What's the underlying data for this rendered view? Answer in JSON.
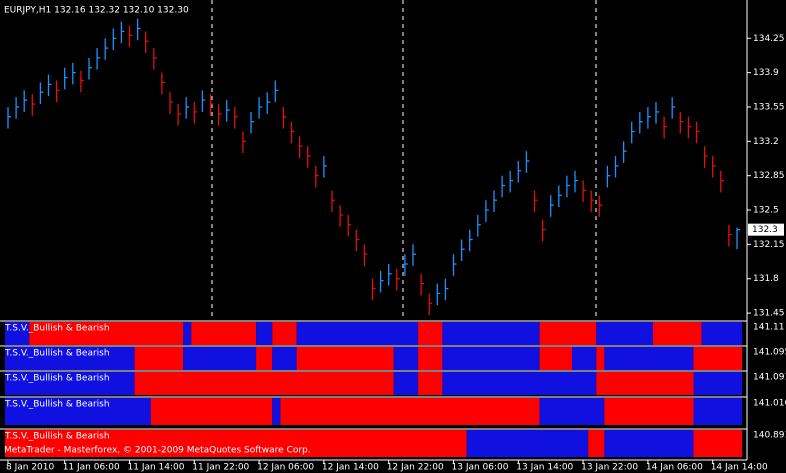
{
  "chart_data": [
    {
      "type": "ohlc",
      "title": "EURJPY,H1  132.16 132.32 132.10 132.30",
      "categories": [
        "8 Jan 2010",
        null,
        null,
        null,
        null,
        null,
        null,
        "11 Jan 06:00",
        null,
        null,
        null,
        null,
        null,
        null,
        null,
        "11 Jan 14:00",
        null,
        null,
        null,
        null,
        null,
        null,
        null,
        "11 Jan 22:00",
        null,
        null,
        null,
        null,
        null,
        null,
        null,
        "12 Jan 06:00",
        null,
        null,
        null,
        null,
        null,
        null,
        null,
        "12 Jan 14:00",
        null,
        null,
        null,
        null,
        null,
        null,
        null,
        "12 Jan 22:00",
        null,
        null,
        null,
        null,
        null,
        null,
        null,
        "13 Jan 06:00",
        null,
        null,
        null,
        null,
        null,
        null,
        null,
        "13 Jan 14:00",
        null,
        null,
        null,
        null,
        null,
        null,
        null,
        "13 Jan 22:00",
        null,
        null,
        null,
        null,
        null,
        null,
        null,
        "14 Jan 06:00",
        null,
        null,
        null,
        null,
        null,
        null,
        null,
        "14 Jan 14:00",
        null,
        null,
        null
      ],
      "high": [
        133.55,
        133.65,
        133.72,
        133.68,
        133.8,
        133.88,
        133.82,
        133.95,
        134.0,
        133.92,
        134.05,
        134.15,
        134.25,
        134.35,
        134.42,
        134.38,
        134.45,
        134.32,
        134.15,
        133.9,
        133.7,
        133.58,
        133.65,
        133.6,
        133.72,
        133.68,
        133.58,
        133.62,
        133.55,
        133.3,
        133.5,
        133.65,
        133.7,
        133.82,
        133.55,
        133.4,
        133.25,
        133.15,
        132.95,
        133.05,
        132.7,
        132.55,
        132.45,
        132.3,
        132.15,
        131.8,
        131.88,
        131.95,
        131.9,
        132.05,
        132.15,
        131.85,
        131.65,
        131.75,
        131.8,
        132.05,
        132.2,
        132.3,
        132.45,
        132.6,
        132.7,
        132.85,
        132.9,
        133.0,
        133.1,
        132.7,
        132.4,
        132.65,
        132.75,
        132.85,
        132.9,
        132.8,
        132.7,
        132.65,
        132.95,
        133.05,
        133.2,
        133.4,
        133.5,
        133.55,
        133.6,
        133.45,
        133.65,
        133.5,
        133.45,
        133.4,
        133.15,
        133.05,
        132.9,
        132.35,
        132.32
      ],
      "low": [
        133.33,
        133.43,
        133.5,
        133.46,
        133.58,
        133.66,
        133.6,
        133.73,
        133.78,
        133.7,
        133.83,
        133.93,
        134.03,
        134.13,
        134.2,
        134.16,
        134.23,
        134.1,
        133.93,
        133.68,
        133.48,
        133.36,
        133.43,
        133.38,
        133.5,
        133.46,
        133.36,
        133.4,
        133.33,
        133.08,
        133.28,
        133.43,
        133.48,
        133.6,
        133.33,
        133.18,
        133.03,
        132.93,
        132.73,
        132.83,
        132.48,
        132.33,
        132.23,
        132.08,
        131.93,
        131.58,
        131.66,
        131.73,
        131.68,
        131.83,
        131.93,
        131.63,
        131.43,
        131.53,
        131.58,
        131.83,
        131.98,
        132.08,
        132.23,
        132.38,
        132.48,
        132.63,
        132.68,
        132.78,
        132.88,
        132.48,
        132.18,
        132.43,
        132.53,
        132.63,
        132.68,
        132.58,
        132.48,
        132.43,
        132.73,
        132.83,
        132.98,
        133.18,
        133.28,
        133.33,
        133.38,
        133.23,
        133.43,
        133.28,
        133.23,
        133.18,
        132.93,
        132.83,
        132.68,
        132.13,
        132.1
      ],
      "close": [
        133.45,
        133.55,
        133.62,
        133.58,
        133.7,
        133.78,
        133.72,
        133.85,
        133.9,
        133.82,
        133.95,
        134.05,
        134.15,
        134.25,
        134.32,
        134.28,
        134.35,
        134.22,
        134.05,
        133.8,
        133.6,
        133.48,
        133.55,
        133.5,
        133.62,
        133.58,
        133.48,
        133.52,
        133.45,
        133.2,
        133.4,
        133.55,
        133.6,
        133.72,
        133.45,
        133.3,
        133.15,
        133.05,
        132.85,
        132.95,
        132.6,
        132.45,
        132.35,
        132.2,
        132.05,
        131.7,
        131.78,
        131.85,
        131.8,
        131.95,
        132.05,
        131.75,
        131.55,
        131.65,
        131.7,
        131.95,
        132.1,
        132.2,
        132.35,
        132.5,
        132.6,
        132.75,
        132.8,
        132.9,
        133.0,
        132.6,
        132.3,
        132.55,
        132.65,
        132.75,
        132.8,
        132.7,
        132.6,
        132.55,
        132.85,
        132.95,
        133.1,
        133.3,
        133.4,
        133.45,
        133.5,
        133.35,
        133.55,
        133.4,
        133.35,
        133.3,
        133.05,
        132.95,
        132.8,
        132.25,
        132.3
      ],
      "up_color": "#1e90ff",
      "down_color": "#e01010",
      "ylim": [
        131.4,
        134.64
      ],
      "yticks": [
        134.25,
        133.9,
        133.55,
        133.2,
        132.85,
        132.5,
        132.15,
        131.8,
        131.45
      ],
      "last_price": 132.3
    },
    {
      "type": "strip",
      "title": "T.S.V._Bullish & Bearish",
      "colors": [
        "#1010e0",
        "#ff0000"
      ],
      "runs": [
        3,
        19,
        1,
        8,
        2,
        3,
        15,
        3,
        12,
        7,
        7,
        6,
        5
      ],
      "last_value": 141.11
    },
    {
      "type": "strip",
      "title": "T.S.V._Bullish & Bearish",
      "colors": [
        "#1010e0",
        "#ff0000"
      ],
      "runs": [
        16,
        6,
        9,
        2,
        3,
        12,
        3,
        3,
        12,
        4,
        3,
        1,
        11,
        6
      ],
      "last_value": 141.095
    },
    {
      "type": "strip",
      "title": "T.S.V._Bullish & Bearish",
      "colors": [
        "#1010e0",
        "#ff0000"
      ],
      "runs": [
        16,
        32,
        3,
        3,
        19,
        12,
        6
      ],
      "last_value": 141.091
    },
    {
      "type": "strip",
      "title": "T.S.V._Bullish & Bearish",
      "colors": [
        "#1010e0",
        "#ff0000"
      ],
      "runs": [
        18,
        15,
        1,
        32,
        8,
        11,
        6
      ],
      "last_value": 141.016
    },
    {
      "type": "strip",
      "title": "T.S.V._Bullish & Bearish",
      "colors": [
        "#ff0000",
        "#1010e0"
      ],
      "runs": [
        57,
        15,
        2,
        11,
        6
      ],
      "last_value": 140.891
    }
  ],
  "footer": "MetaTrader - Masterforex, © 2001-2009 MetaQuotes Software Corp."
}
